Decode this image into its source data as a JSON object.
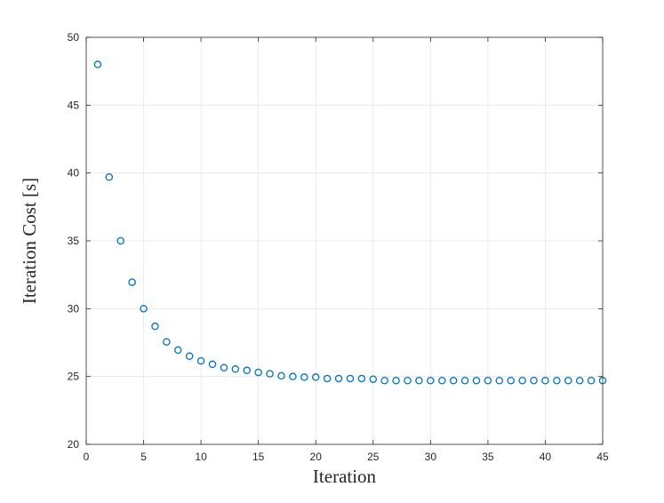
{
  "chart_data": {
    "type": "scatter",
    "title": "",
    "xlabel": "Iteration",
    "ylabel": "Iteration Cost [s]",
    "xlim": [
      0,
      45
    ],
    "ylim": [
      20,
      50
    ],
    "xticks": [
      0,
      5,
      10,
      15,
      20,
      25,
      30,
      35,
      40,
      45
    ],
    "yticks": [
      20,
      25,
      30,
      35,
      40,
      45,
      50
    ],
    "grid": true,
    "marker": "open-circle",
    "colors": {
      "marker": "#0072BD",
      "grid": "#e6e6e6",
      "axis": "#262626"
    },
    "series": [
      {
        "x": [
          1,
          2,
          3,
          4,
          5,
          6,
          7,
          8,
          9,
          10,
          11,
          12,
          13,
          14,
          15,
          16,
          17,
          18,
          19,
          20,
          21,
          22,
          23,
          24,
          25,
          26,
          27,
          28,
          29,
          30,
          31,
          32,
          33,
          34,
          35,
          36,
          37,
          38,
          39,
          40,
          41,
          42,
          43,
          44,
          45
        ],
        "y": [
          48.0,
          39.7,
          35.0,
          31.95,
          30.0,
          28.7,
          27.55,
          26.95,
          26.5,
          26.15,
          25.9,
          25.65,
          25.55,
          25.45,
          25.3,
          25.2,
          25.05,
          25.0,
          24.95,
          24.95,
          24.85,
          24.85,
          24.85,
          24.85,
          24.8,
          24.7,
          24.7,
          24.7,
          24.7,
          24.7,
          24.7,
          24.7,
          24.7,
          24.7,
          24.7,
          24.7,
          24.7,
          24.7,
          24.7,
          24.7,
          24.7,
          24.7,
          24.7,
          24.7,
          24.7
        ]
      }
    ]
  }
}
